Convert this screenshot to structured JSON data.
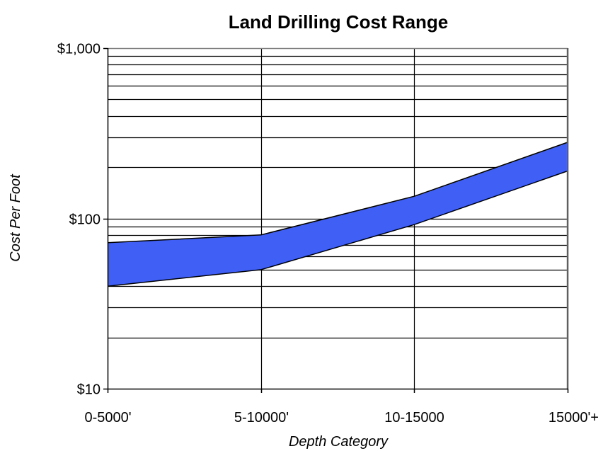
{
  "chart_data": {
    "type": "area",
    "title": "Land Drilling Cost Range",
    "xlabel": "Depth Category",
    "ylabel": "Cost Per Foot",
    "y_scale": "log",
    "ylim": [
      10,
      1000
    ],
    "grid": {
      "major_and_minor_y": true,
      "x": true
    },
    "categories": [
      "0-5000'",
      "5-10000'",
      "10-15000",
      "15000'+"
    ],
    "y_tick_values": [
      10,
      100,
      1000
    ],
    "y_tick_labels": [
      "$10",
      "$100",
      "$1,000"
    ],
    "series": [
      {
        "values_low": [
          40,
          50,
          92,
          190
        ],
        "values_high": [
          72,
          80,
          135,
          280
        ]
      }
    ],
    "colors": {
      "band_fill": "#3F5FF5",
      "outline": "#000000",
      "grid": "#000000",
      "frame_top_right": "#808080"
    }
  }
}
